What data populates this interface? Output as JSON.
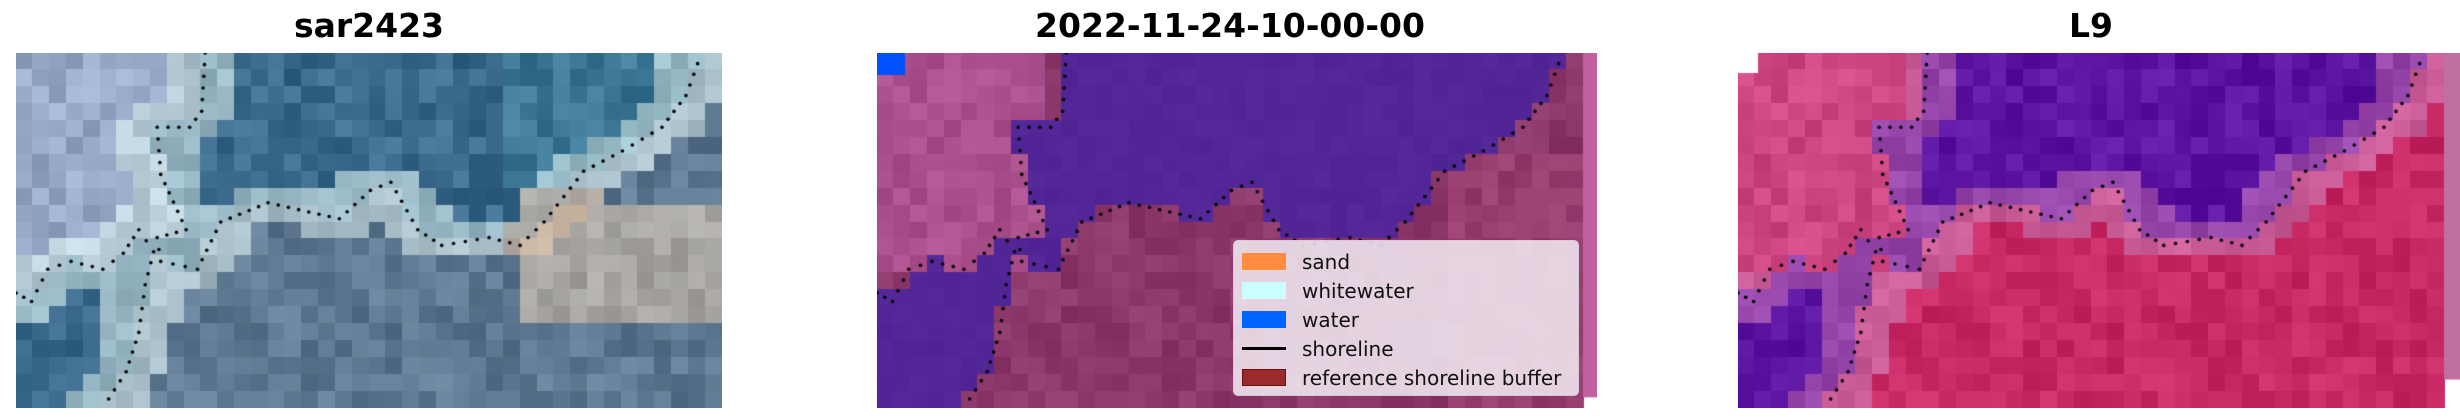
{
  "panels": [
    {
      "title": "sar2423",
      "kind": "rgb"
    },
    {
      "title": "2022-11-24-10-00-00",
      "kind": "classified"
    },
    {
      "title": "L9",
      "kind": "index"
    }
  ],
  "legend": {
    "items": [
      {
        "label": "sand",
        "color": "#ff8c3f",
        "type": "patch"
      },
      {
        "label": "whitewater",
        "color": "#ccffff",
        "type": "patch"
      },
      {
        "label": "water",
        "color": "#0064ff",
        "type": "patch"
      },
      {
        "label": "shoreline",
        "color": "#000000",
        "type": "line"
      },
      {
        "label": "reference shoreline buffer",
        "color": "#9b2a2a",
        "type": "patch"
      }
    ]
  }
}
